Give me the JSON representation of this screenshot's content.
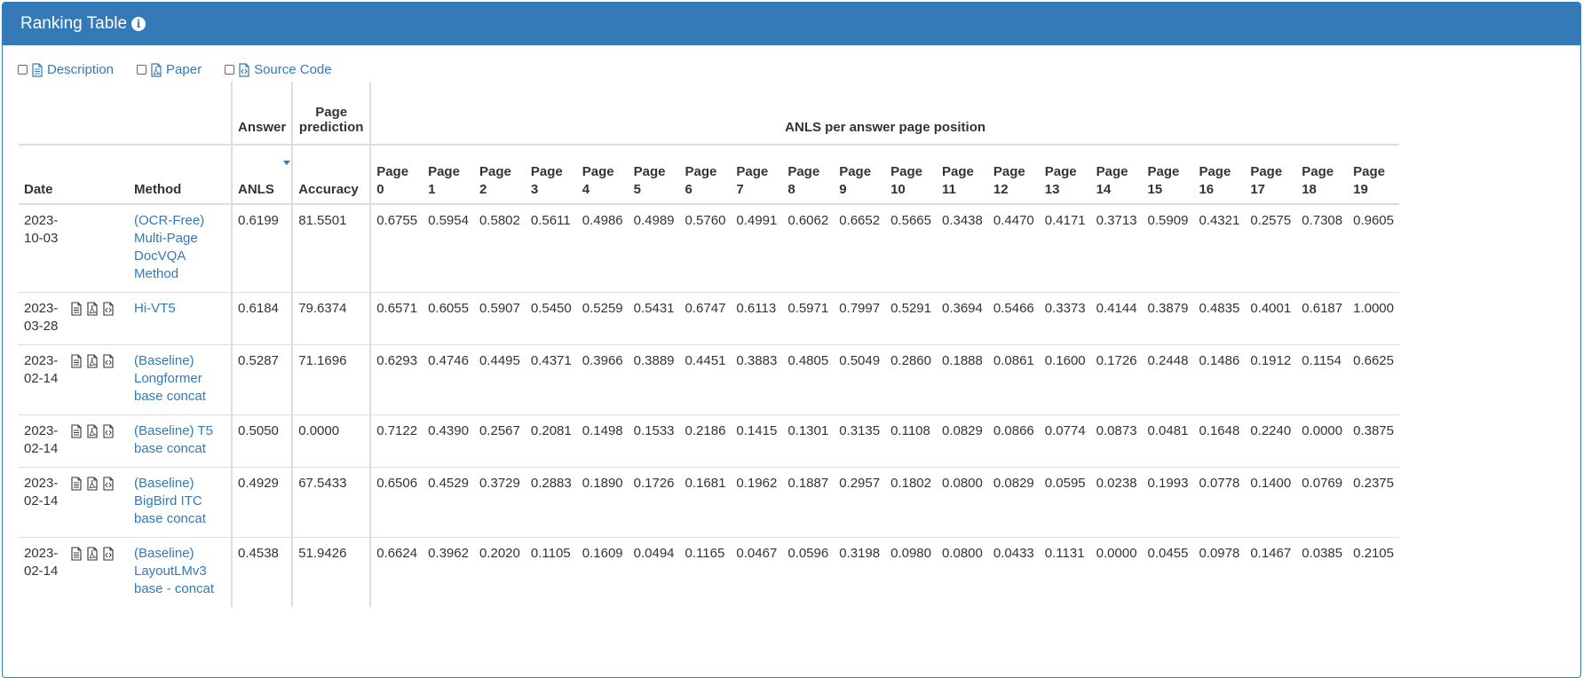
{
  "panel": {
    "title": "Ranking Table"
  },
  "toggles": [
    {
      "label": "Description",
      "icon": "file-text-icon"
    },
    {
      "label": "Paper",
      "icon": "file-pdf-icon"
    },
    {
      "label": "Source Code",
      "icon": "file-code-icon"
    }
  ],
  "groups": {
    "answer": "Answer",
    "page_prediction": "Page prediction",
    "anls_per_page": "ANLS per answer page position"
  },
  "columns": {
    "date": "Date",
    "method": "Method",
    "anls": "ANLS",
    "accuracy": "Accuracy",
    "pages": [
      "Page 0",
      "Page 1",
      "Page 2",
      "Page 3",
      "Page 4",
      "Page 5",
      "Page 6",
      "Page 7",
      "Page 8",
      "Page 9",
      "Page 10",
      "Page 11",
      "Page 12",
      "Page 13",
      "Page 14",
      "Page 15",
      "Page 16",
      "Page 17",
      "Page 18",
      "Page 19"
    ]
  },
  "rows": [
    {
      "date": "2023-10-03",
      "has_icons": false,
      "method": "(OCR-Free) Multi-Page DocVQA Method",
      "anls": "0.6199",
      "accuracy": "81.5501",
      "pages": [
        "0.6755",
        "0.5954",
        "0.5802",
        "0.5611",
        "0.4986",
        "0.4989",
        "0.5760",
        "0.4991",
        "0.6062",
        "0.6652",
        "0.5665",
        "0.3438",
        "0.4470",
        "0.4171",
        "0.3713",
        "0.5909",
        "0.4321",
        "0.2575",
        "0.7308",
        "0.9605"
      ]
    },
    {
      "date": "2023-03-28",
      "has_icons": true,
      "method": "Hi-VT5",
      "anls": "0.6184",
      "accuracy": "79.6374",
      "pages": [
        "0.6571",
        "0.6055",
        "0.5907",
        "0.5450",
        "0.5259",
        "0.5431",
        "0.6747",
        "0.6113",
        "0.5971",
        "0.7997",
        "0.5291",
        "0.3694",
        "0.5466",
        "0.3373",
        "0.4144",
        "0.3879",
        "0.4835",
        "0.4001",
        "0.6187",
        "1.0000"
      ]
    },
    {
      "date": "2023-02-14",
      "has_icons": true,
      "method": "(Baseline) Longformer base concat",
      "anls": "0.5287",
      "accuracy": "71.1696",
      "pages": [
        "0.6293",
        "0.4746",
        "0.4495",
        "0.4371",
        "0.3966",
        "0.3889",
        "0.4451",
        "0.3883",
        "0.4805",
        "0.5049",
        "0.2860",
        "0.1888",
        "0.0861",
        "0.1600",
        "0.1726",
        "0.2448",
        "0.1486",
        "0.1912",
        "0.1154",
        "0.6625"
      ]
    },
    {
      "date": "2023-02-14",
      "has_icons": true,
      "method": "(Baseline) T5 base concat",
      "anls": "0.5050",
      "accuracy": "0.0000",
      "pages": [
        "0.7122",
        "0.4390",
        "0.2567",
        "0.2081",
        "0.1498",
        "0.1533",
        "0.2186",
        "0.1415",
        "0.1301",
        "0.3135",
        "0.1108",
        "0.0829",
        "0.0866",
        "0.0774",
        "0.0873",
        "0.0481",
        "0.1648",
        "0.2240",
        "0.0000",
        "0.3875"
      ]
    },
    {
      "date": "2023-02-14",
      "has_icons": true,
      "method": "(Baseline) BigBird ITC base concat",
      "anls": "0.4929",
      "accuracy": "67.5433",
      "pages": [
        "0.6506",
        "0.4529",
        "0.3729",
        "0.2883",
        "0.1890",
        "0.1726",
        "0.1681",
        "0.1962",
        "0.1887",
        "0.2957",
        "0.1802",
        "0.0800",
        "0.0829",
        "0.0595",
        "0.0238",
        "0.1993",
        "0.0778",
        "0.1400",
        "0.0769",
        "0.2375"
      ]
    },
    {
      "date": "2023-02-14",
      "has_icons": true,
      "method": "(Baseline) LayoutLMv3 base - concat",
      "anls": "0.4538",
      "accuracy": "51.9426",
      "pages": [
        "0.6624",
        "0.3962",
        "0.2020",
        "0.1105",
        "0.1609",
        "0.0494",
        "0.1165",
        "0.0467",
        "0.0596",
        "0.3198",
        "0.0980",
        "0.0800",
        "0.0433",
        "0.1131",
        "0.0000",
        "0.0455",
        "0.0978",
        "0.1467",
        "0.0385",
        "0.2105"
      ]
    }
  ],
  "colors": {
    "primary": "#337ab7",
    "border": "#dddddd",
    "text": "#333333"
  }
}
